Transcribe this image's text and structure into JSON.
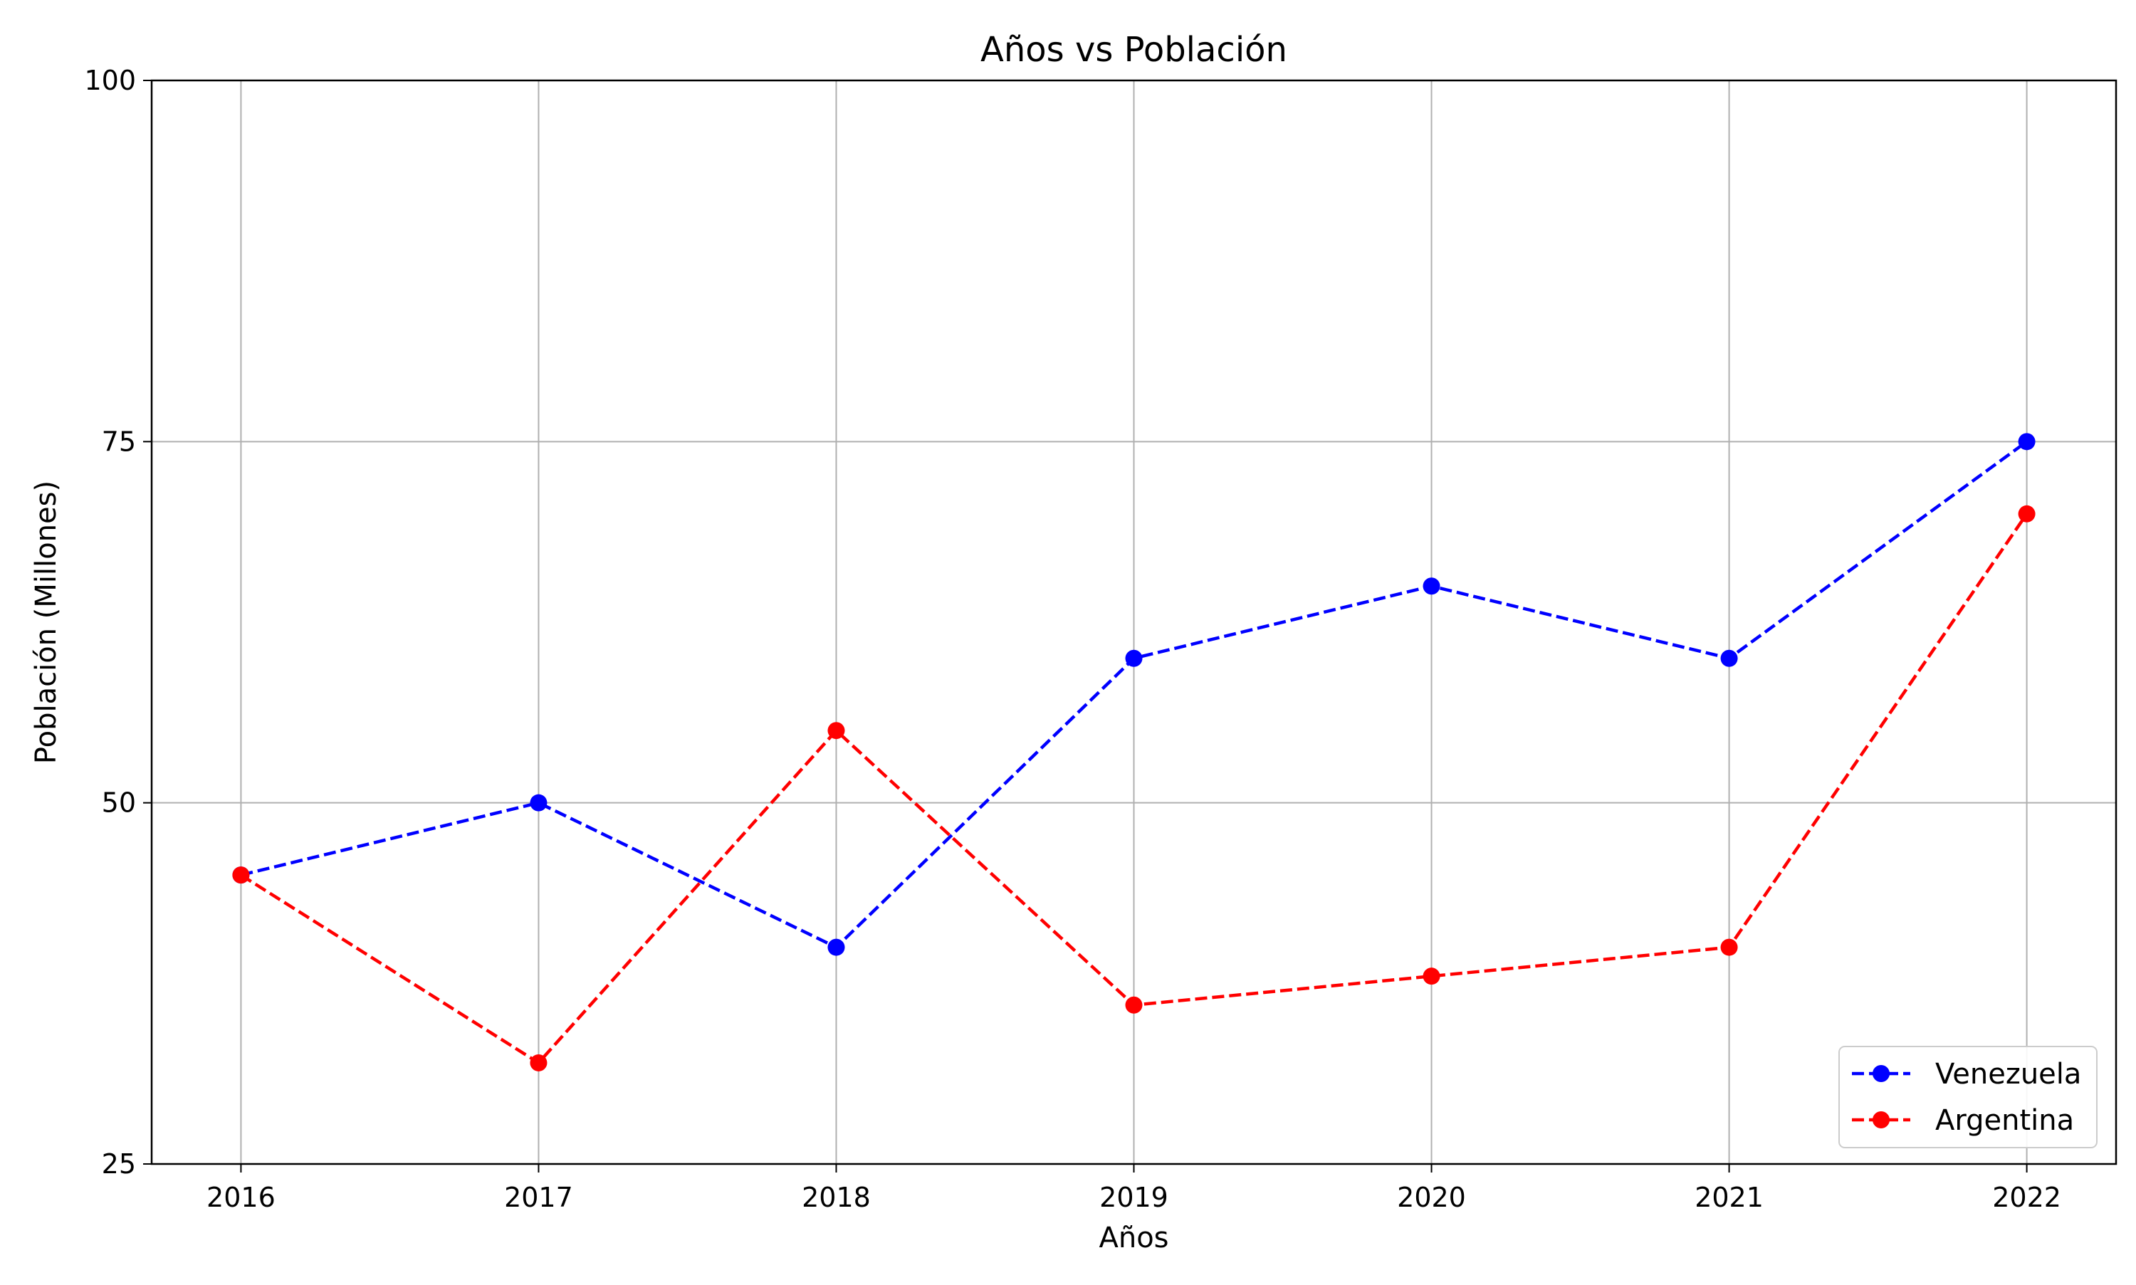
{
  "chart_data": {
    "type": "line",
    "title": "Años vs Población",
    "xlabel": "Años",
    "ylabel": "Población (Millones)",
    "x": [
      2016,
      2017,
      2018,
      2019,
      2020,
      2021,
      2022
    ],
    "x_ticks": [
      "2016",
      "2017",
      "2018",
      "2019",
      "2020",
      "2021",
      "2022"
    ],
    "ylim": [
      25,
      100
    ],
    "y_ticks": [
      "25",
      "50",
      "75",
      "100"
    ],
    "grid": true,
    "legend_position": "bottom-right",
    "series": [
      {
        "name": "Venezuela",
        "color": "#0000ff",
        "line_style": "dashed",
        "marker": "circle",
        "values": [
          45,
          50,
          40,
          60,
          65,
          60,
          75
        ]
      },
      {
        "name": "Argentina",
        "color": "#ff0000",
        "line_style": "dashed",
        "marker": "circle",
        "values": [
          45,
          32,
          55,
          36,
          38,
          40,
          70
        ]
      }
    ]
  }
}
